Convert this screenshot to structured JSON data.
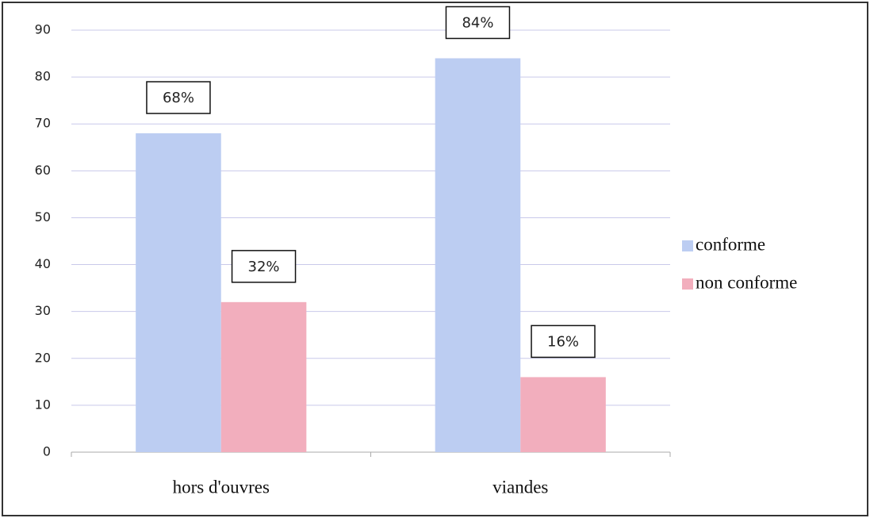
{
  "chart_data": {
    "type": "bar",
    "categories": [
      "hors d'ouvres",
      "viandes"
    ],
    "series": [
      {
        "name": "conforme",
        "color": "#bccdf2",
        "values": [
          68,
          84
        ],
        "value_labels": [
          "68%",
          "84%"
        ]
      },
      {
        "name": "non conforme",
        "color": "#f2aebd",
        "values": [
          32,
          16
        ],
        "value_labels": [
          "32%",
          "16%"
        ]
      }
    ],
    "ylim": [
      0,
      90
    ],
    "yticks": [
      0,
      10,
      20,
      30,
      40,
      50,
      60,
      70,
      80,
      90
    ],
    "grid": true,
    "legend": "right"
  }
}
